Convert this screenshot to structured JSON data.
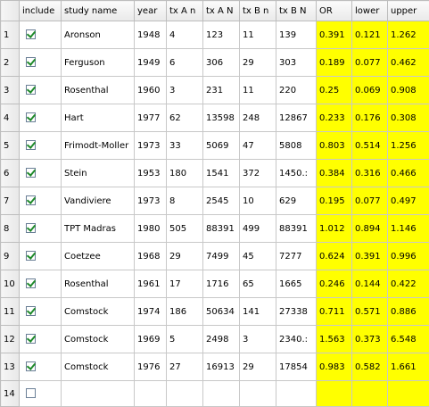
{
  "columns": [
    "",
    "include",
    "study name",
    "year",
    "tx A n",
    "tx A N",
    "tx B n",
    "tx B N",
    "OR",
    "lower",
    "upper"
  ],
  "highlight_color": "#ffff00",
  "rows": [
    {
      "num": "1",
      "include": true,
      "study": "Aronson",
      "year": "1948",
      "txAn": "4",
      "txAN": "123",
      "txBn": "11",
      "txBN": "139",
      "OR": "0.391",
      "lower": "0.121",
      "upper": "1.262"
    },
    {
      "num": "2",
      "include": true,
      "study": "Ferguson",
      "year": "1949",
      "txAn": "6",
      "txAN": "306",
      "txBn": "29",
      "txBN": "303",
      "OR": "0.189",
      "lower": "0.077",
      "upper": "0.462"
    },
    {
      "num": "3",
      "include": true,
      "study": "Rosenthal",
      "year": "1960",
      "txAn": "3",
      "txAN": "231",
      "txBn": "11",
      "txBN": "220",
      "OR": "0.25",
      "lower": "0.069",
      "upper": "0.908"
    },
    {
      "num": "4",
      "include": true,
      "study": "Hart",
      "year": "1977",
      "txAn": "62",
      "txAN": "13598",
      "txBn": "248",
      "txBN": "12867",
      "OR": "0.233",
      "lower": "0.176",
      "upper": "0.308"
    },
    {
      "num": "5",
      "include": true,
      "study": "Frimodt-Moller",
      "year": "1973",
      "txAn": "33",
      "txAN": "5069",
      "txBn": "47",
      "txBN": "5808",
      "OR": "0.803",
      "lower": "0.514",
      "upper": "1.256"
    },
    {
      "num": "6",
      "include": true,
      "study": "Stein",
      "year": "1953",
      "txAn": "180",
      "txAN": "1541",
      "txBn": "372",
      "txBN": "1450.:",
      "OR": "0.384",
      "lower": "0.316",
      "upper": "0.466"
    },
    {
      "num": "7",
      "include": true,
      "study": "Vandiviere",
      "year": "1973",
      "txAn": "8",
      "txAN": "2545",
      "txBn": "10",
      "txBN": "629",
      "OR": "0.195",
      "lower": "0.077",
      "upper": "0.497"
    },
    {
      "num": "8",
      "include": true,
      "study": "TPT Madras",
      "year": "1980",
      "txAn": "505",
      "txAN": "88391",
      "txBn": "499",
      "txBN": "88391",
      "OR": "1.012",
      "lower": "0.894",
      "upper": "1.146"
    },
    {
      "num": "9",
      "include": true,
      "study": "Coetzee",
      "year": "1968",
      "txAn": "29",
      "txAN": "7499",
      "txBn": "45",
      "txBN": "7277",
      "OR": "0.624",
      "lower": "0.391",
      "upper": "0.996"
    },
    {
      "num": "10",
      "include": true,
      "study": "Rosenthal",
      "year": "1961",
      "txAn": "17",
      "txAN": "1716",
      "txBn": "65",
      "txBN": "1665",
      "OR": "0.246",
      "lower": "0.144",
      "upper": "0.422"
    },
    {
      "num": "11",
      "include": true,
      "study": "Comstock",
      "year": "1974",
      "txAn": "186",
      "txAN": "50634",
      "txBn": "141",
      "txBN": "27338",
      "OR": "0.711",
      "lower": "0.571",
      "upper": "0.886"
    },
    {
      "num": "12",
      "include": true,
      "study": "Comstock",
      "year": "1969",
      "txAn": "5",
      "txAN": "2498",
      "txBn": "3",
      "txBN": "2340.:",
      "OR": "1.563",
      "lower": "0.373",
      "upper": "6.548"
    },
    {
      "num": "13",
      "include": true,
      "study": "Comstock",
      "year": "1976",
      "txAn": "27",
      "txAN": "16913",
      "txBn": "29",
      "txBN": "17854",
      "OR": "0.983",
      "lower": "0.582",
      "upper": "1.661"
    },
    {
      "num": "14",
      "include": false,
      "study": "",
      "year": "",
      "txAn": "",
      "txAN": "",
      "txBn": "",
      "txBN": "",
      "OR": "",
      "lower": "",
      "upper": ""
    }
  ]
}
